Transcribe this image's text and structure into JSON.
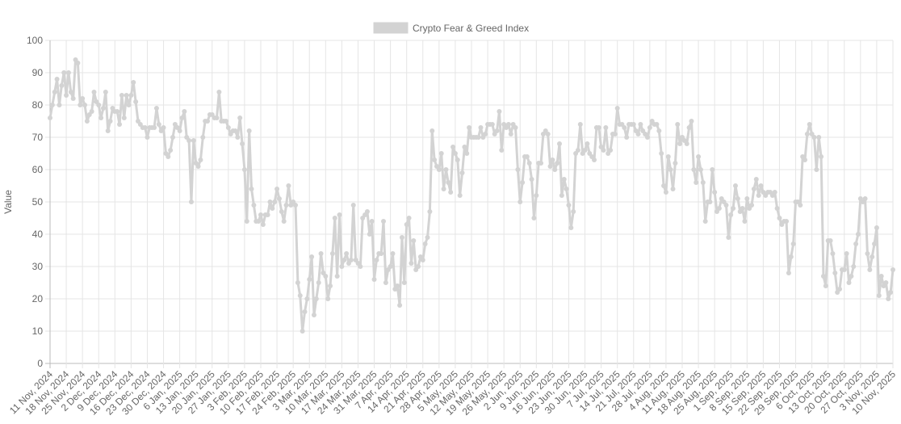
{
  "chart_data": {
    "type": "line",
    "series": [
      {
        "name": "Crypto Fear & Greed Index",
        "color": "#d3d3d3",
        "values": [
          76,
          80,
          84,
          88,
          80,
          86,
          90,
          83,
          90,
          84,
          82,
          94,
          93,
          80,
          82,
          80,
          75,
          77,
          78,
          84,
          81,
          80,
          76,
          79,
          84,
          72,
          75,
          79,
          78,
          78,
          74,
          83,
          76,
          83,
          80,
          83,
          87,
          81,
          75,
          74,
          73,
          73,
          70,
          73,
          73,
          73,
          79,
          74,
          72,
          73,
          65,
          64,
          66,
          70,
          74,
          73,
          72,
          76,
          78,
          70,
          69,
          50,
          69,
          62,
          61,
          63,
          70,
          75,
          75,
          77,
          77,
          76,
          76,
          84,
          75,
          75,
          75,
          73,
          71,
          72,
          72,
          70,
          76,
          68,
          60,
          44,
          72,
          54,
          49,
          44,
          44,
          46,
          43,
          46,
          46,
          50,
          48,
          50,
          54,
          51,
          47,
          44,
          49,
          55,
          49,
          50,
          49,
          25,
          21,
          10,
          16,
          20,
          26,
          33,
          15,
          20,
          25,
          34,
          28,
          27,
          20,
          24,
          34,
          45,
          27,
          46,
          30,
          32,
          34,
          31,
          32,
          49,
          32,
          31,
          30,
          45,
          46,
          47,
          40,
          44,
          26,
          32,
          34,
          34,
          44,
          25,
          29,
          30,
          34,
          23,
          24,
          18,
          39,
          25,
          43,
          45,
          31,
          38,
          29,
          30,
          33,
          32,
          37,
          39,
          47,
          72,
          63,
          61,
          60,
          65,
          54,
          60,
          56,
          53,
          67,
          65,
          63,
          52,
          59,
          67,
          65,
          73,
          70,
          70,
          70,
          70,
          73,
          70,
          71,
          74,
          74,
          74,
          71,
          72,
          78,
          66,
          74,
          73,
          74,
          71,
          74,
          73,
          60,
          50,
          56,
          64,
          64,
          62,
          57,
          45,
          52,
          62,
          62,
          71,
          72,
          71,
          61,
          63,
          60,
          62,
          68,
          52,
          57,
          54,
          49,
          42,
          47,
          65,
          66,
          74,
          65,
          66,
          68,
          65,
          64,
          63,
          73,
          73,
          67,
          66,
          73,
          65,
          66,
          71,
          71,
          79,
          74,
          74,
          73,
          70,
          74,
          74,
          74,
          72,
          71,
          74,
          72,
          71,
          70,
          73,
          75,
          74,
          74,
          72,
          65,
          55,
          53,
          64,
          60,
          54,
          62,
          74,
          68,
          70,
          69,
          68,
          73,
          75,
          60,
          56,
          64,
          60,
          56,
          44,
          50,
          50,
          60,
          53,
          47,
          48,
          51,
          50,
          49,
          39,
          46,
          48,
          55,
          51,
          47,
          48,
          44,
          51,
          48,
          49,
          54,
          57,
          52,
          55,
          53,
          52,
          53,
          53,
          52,
          53,
          48,
          45,
          43,
          44,
          44,
          28,
          33,
          37,
          50,
          50,
          49,
          64,
          63,
          71,
          74,
          71,
          70,
          60,
          70,
          64,
          27,
          24,
          38,
          38,
          34,
          28,
          22,
          23,
          29,
          29,
          34,
          25,
          27,
          30,
          37,
          40,
          51,
          50,
          51,
          34,
          29,
          33,
          37,
          42,
          21,
          27,
          24,
          25,
          20,
          22,
          29
        ]
      }
    ],
    "categories": [
      "11 Nov, 2024",
      null,
      null,
      null,
      null,
      null,
      null,
      "18 Nov, 2024",
      null,
      null,
      null,
      null,
      null,
      null,
      "25 Nov, 2024",
      null,
      null,
      null,
      null,
      null,
      null,
      "2 Dec, 2024",
      null,
      null,
      null,
      null,
      null,
      null,
      "9 Dec, 2024",
      null,
      null,
      null,
      null,
      null,
      null,
      "16 Dec, 2024",
      null,
      null,
      null,
      null,
      null,
      null,
      "23 Dec, 2024",
      null,
      null,
      null,
      null,
      null,
      null,
      "30 Dec, 2024",
      null,
      null,
      null,
      null,
      null,
      null,
      "6 Jan, 2025",
      null,
      null,
      null,
      null,
      null,
      null,
      "13 Jan, 2025",
      null,
      null,
      null,
      null,
      null,
      null,
      "20 Jan, 2025",
      null,
      null,
      null,
      null,
      null,
      null,
      "27 Jan, 2025",
      null,
      null,
      null,
      null,
      null,
      null,
      "3 Feb, 2025",
      null,
      null,
      null,
      null,
      null,
      null,
      "10 Feb, 2025",
      null,
      null,
      null,
      null,
      null,
      null,
      "17 Feb, 2025",
      null,
      null,
      null,
      null,
      null,
      null,
      "24 Feb, 2025",
      null,
      null,
      null,
      null,
      null,
      null,
      "3 Mar, 2025",
      null,
      null,
      null,
      null,
      null,
      null,
      "10 Mar, 2025",
      null,
      null,
      null,
      null,
      null,
      null,
      "17 Mar, 2025",
      null,
      null,
      null,
      null,
      null,
      null,
      "24 Mar, 2025",
      null,
      null,
      null,
      null,
      null,
      null,
      "31 Mar, 2025",
      null,
      null,
      null,
      null,
      null,
      null,
      "7 Apr, 2025",
      null,
      null,
      null,
      null,
      null,
      null,
      "14 Apr, 2025",
      null,
      null,
      null,
      null,
      null,
      null,
      "21 Apr, 2025",
      null,
      null,
      null,
      null,
      null,
      null,
      "28 Apr, 2025",
      null,
      null,
      null,
      null,
      null,
      null,
      "5 May, 2025",
      null,
      null,
      null,
      null,
      null,
      null,
      "12 May, 2025",
      null,
      null,
      null,
      null,
      null,
      null,
      "19 May, 2025",
      null,
      null,
      null,
      null,
      null,
      null,
      "26 May, 2025",
      null,
      null,
      null,
      null,
      null,
      null,
      "2 Jun, 2025",
      null,
      null,
      null,
      null,
      null,
      null,
      "9 Jun, 2025",
      null,
      null,
      null,
      null,
      null,
      null,
      "16 Jun, 2025",
      null,
      null,
      null,
      null,
      null,
      null,
      "23 Jun, 2025",
      null,
      null,
      null,
      null,
      null,
      null,
      "30 Jun, 2025",
      null,
      null,
      null,
      null,
      null,
      null,
      "7 Jul, 2025",
      null,
      null,
      null,
      null,
      null,
      null,
      "14 Jul, 2025",
      null,
      null,
      null,
      null,
      null,
      null,
      "21 Jul, 2025",
      null,
      null,
      null,
      null,
      null,
      null,
      "28 Jul, 2025",
      null,
      null,
      null,
      null,
      null,
      null,
      "4 Aug, 2025",
      null,
      null,
      null,
      null,
      null,
      null,
      "11 Aug, 2025",
      null,
      null,
      null,
      null,
      null,
      null,
      "18 Aug, 2025",
      null,
      null,
      null,
      null,
      null,
      null,
      "25 Aug, 2025",
      null,
      null,
      null,
      null,
      null,
      null,
      "1 Sep, 2025",
      null,
      null,
      null,
      null,
      null,
      null,
      "8 Sep, 2025",
      null,
      null,
      null,
      null,
      null,
      null,
      "15 Sep, 2025",
      null,
      null,
      null,
      null,
      null,
      null,
      "22 Sep, 2025",
      null,
      null,
      null,
      null,
      null,
      null,
      "29 Sep, 2025",
      null,
      null,
      null,
      null,
      null,
      null,
      "6 Oct, 2025",
      null,
      null,
      null,
      null,
      null,
      null,
      "13 Oct, 2025",
      null,
      null,
      null,
      null,
      null,
      null,
      "20 Oct, 2025",
      null,
      null,
      null,
      null,
      null,
      null,
      "27 Oct, 2025",
      null,
      null,
      null,
      null,
      null,
      null,
      "3 Nov, 2025",
      null,
      null,
      null,
      null,
      null,
      null,
      "10 Nov, 2025"
    ],
    "y_label": "Value",
    "ylim": [
      0,
      100
    ],
    "yticks": [
      0,
      10,
      20,
      30,
      40,
      50,
      60,
      70,
      80,
      90,
      100
    ],
    "grid": true,
    "legend": "top"
  }
}
